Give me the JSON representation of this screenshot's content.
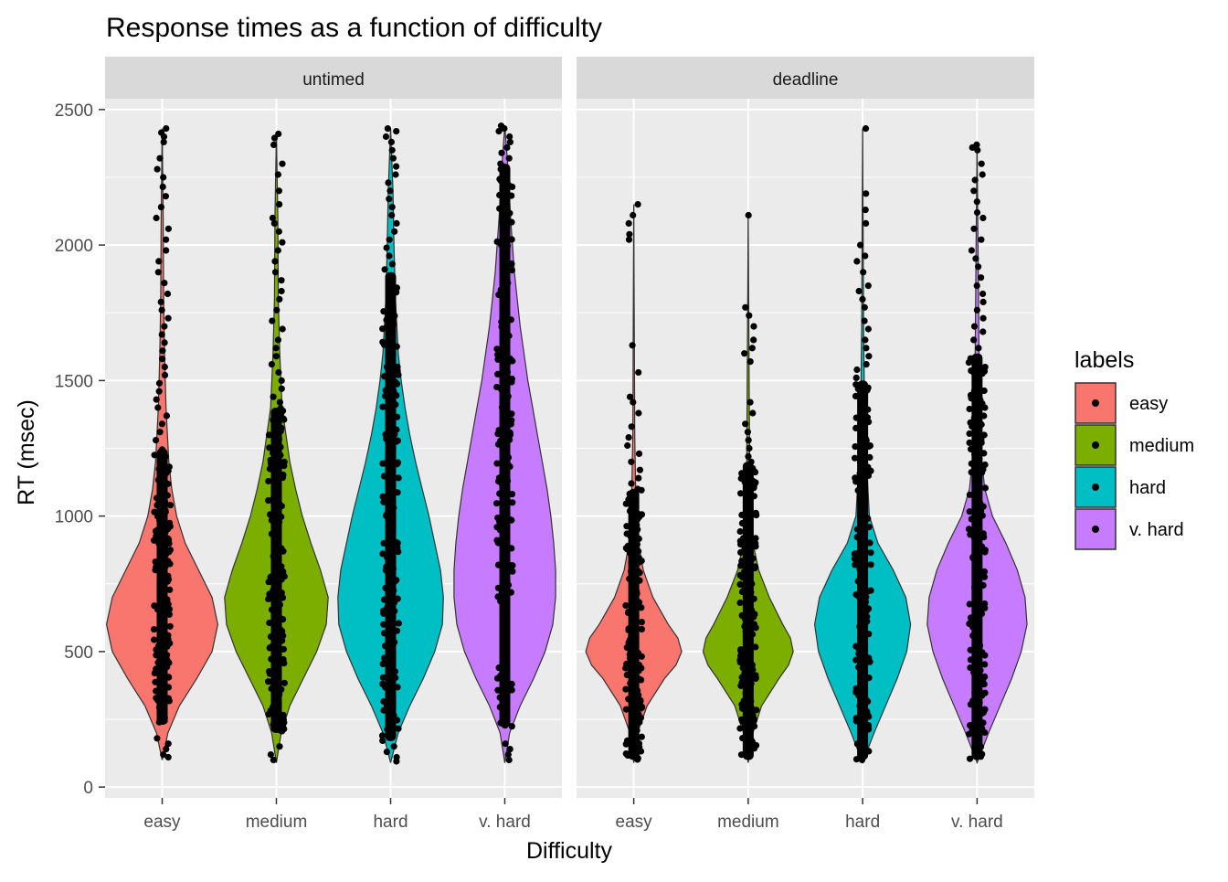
{
  "chart_data": {
    "type": "violin",
    "title": "Response times as a function of difficulty",
    "xlabel": "Difficulty",
    "ylabel": "RT (msec)",
    "ylim": [
      -40,
      2540
    ],
    "yticks": [
      0,
      500,
      1000,
      1500,
      2000,
      2500
    ],
    "grid": true,
    "categories": [
      "easy",
      "medium",
      "hard",
      "v. hard"
    ],
    "legend": {
      "title": "labels",
      "position": "right",
      "entries": [
        {
          "label": "easy",
          "color": "#F8766D"
        },
        {
          "label": "medium",
          "color": "#7CAE00"
        },
        {
          "label": "hard",
          "color": "#00BFC4"
        },
        {
          "label": "v. hard",
          "color": "#C77CFF"
        }
      ]
    },
    "panels": [
      {
        "label": "untimed",
        "series": [
          {
            "category": "easy",
            "color": "#F8766D",
            "min": 100,
            "max": 2430,
            "dense_range": [
              230,
              1250
            ],
            "profile": [
              [
                100,
                0
              ],
              [
                200,
                6
              ],
              [
                300,
                18
              ],
              [
                400,
                36
              ],
              [
                500,
                52
              ],
              [
                600,
                58
              ],
              [
                700,
                52
              ],
              [
                800,
                38
              ],
              [
                900,
                24
              ],
              [
                1000,
                15
              ],
              [
                1100,
                10
              ],
              [
                1200,
                7
              ],
              [
                1400,
                4
              ],
              [
                1600,
                2.5
              ],
              [
                1800,
                1.5
              ],
              [
                2100,
                1
              ],
              [
                2430,
                0
              ]
            ],
            "outliers": [
              2430,
              2415,
              2400,
              2380,
              2320,
              2280,
              2250,
              2215,
              2180,
              2140,
              2100,
              2060,
              2020,
              1980,
              1940,
              1900,
              1860,
              1820,
              1790,
              1760,
              1730,
              1700,
              1670,
              1640,
              1610,
              1580,
              1550,
              1520,
              1490,
              1460,
              1430,
              1400,
              1370,
              1340,
              1310,
              1280,
              180,
              160,
              140,
              120,
              110
            ]
          },
          {
            "category": "medium",
            "color": "#7CAE00",
            "min": 90,
            "max": 2410,
            "dense_range": [
              200,
              1400
            ],
            "profile": [
              [
                90,
                0
              ],
              [
                200,
                5
              ],
              [
                300,
                14
              ],
              [
                400,
                28
              ],
              [
                500,
                42
              ],
              [
                600,
                52
              ],
              [
                700,
                54
              ],
              [
                800,
                46
              ],
              [
                900,
                36
              ],
              [
                1000,
                27
              ],
              [
                1100,
                20
              ],
              [
                1200,
                14
              ],
              [
                1300,
                10
              ],
              [
                1400,
                6
              ],
              [
                1600,
                3.5
              ],
              [
                1800,
                2
              ],
              [
                2100,
                1.5
              ],
              [
                2410,
                0
              ]
            ],
            "outliers": [
              2410,
              2395,
              2370,
              2300,
              2260,
              2200,
              2150,
              2100,
              2080,
              2050,
              2010,
              1980,
              1940,
              1900,
              1870,
              1830,
              1800,
              1760,
              1720,
              1690,
              1650,
              1620,
              1590,
              1560,
              1530,
              1500,
              1470,
              1440,
              1420,
              150,
              120,
              100
            ]
          },
          {
            "category": "hard",
            "color": "#00BFC4",
            "min": 90,
            "max": 2430,
            "dense_range": [
              170,
              1900
            ],
            "profile": [
              [
                90,
                0
              ],
              [
                200,
                8
              ],
              [
                300,
                20
              ],
              [
                400,
                34
              ],
              [
                500,
                46
              ],
              [
                600,
                54
              ],
              [
                700,
                55
              ],
              [
                800,
                52
              ],
              [
                900,
                46
              ],
              [
                1000,
                40
              ],
              [
                1100,
                33
              ],
              [
                1200,
                26
              ],
              [
                1300,
                20
              ],
              [
                1400,
                15
              ],
              [
                1500,
                11
              ],
              [
                1600,
                8
              ],
              [
                1800,
                5
              ],
              [
                2000,
                3.5
              ],
              [
                2200,
                2.5
              ],
              [
                2430,
                0
              ]
            ],
            "outliers": [
              2430,
              2420,
              2400,
              2380,
              2350,
              2320,
              2290,
              2260,
              2230,
              2200,
              2170,
              2140,
              2110,
              2080,
              2050,
              2020,
              1990,
              1960,
              1930,
              1910,
              150,
              130,
              110,
              95
            ]
          },
          {
            "category": "v. hard",
            "color": "#C77CFF",
            "min": 90,
            "max": 2440,
            "dense_range": [
              220,
              2300
            ],
            "profile": [
              [
                90,
                0
              ],
              [
                200,
                5
              ],
              [
                300,
                16
              ],
              [
                400,
                30
              ],
              [
                500,
                42
              ],
              [
                600,
                50
              ],
              [
                700,
                53
              ],
              [
                800,
                53
              ],
              [
                900,
                51
              ],
              [
                1000,
                48
              ],
              [
                1100,
                44
              ],
              [
                1200,
                39
              ],
              [
                1300,
                34
              ],
              [
                1400,
                29
              ],
              [
                1500,
                24
              ],
              [
                1600,
                20
              ],
              [
                1700,
                16
              ],
              [
                1800,
                13
              ],
              [
                1900,
                10
              ],
              [
                2000,
                8
              ],
              [
                2100,
                6
              ],
              [
                2200,
                4.5
              ],
              [
                2300,
                3
              ],
              [
                2440,
                0
              ]
            ],
            "outliers": [
              2440,
              2430,
              2420,
              2400,
              2380,
              2360,
              2340,
              2320,
              2300,
              2280,
              160,
              140,
              120,
              100
            ]
          }
        ]
      },
      {
        "label": "deadline",
        "series": [
          {
            "category": "easy",
            "color": "#F8766D",
            "min": 90,
            "max": 2150,
            "dense_range": [
              100,
              1100
            ],
            "profile": [
              [
                90,
                0
              ],
              [
                200,
                4
              ],
              [
                300,
                14
              ],
              [
                400,
                32
              ],
              [
                450,
                44
              ],
              [
                500,
                50
              ],
              [
                550,
                46
              ],
              [
                600,
                36
              ],
              [
                700,
                20
              ],
              [
                800,
                10
              ],
              [
                900,
                5
              ],
              [
                1000,
                3
              ],
              [
                1100,
                2
              ],
              [
                1300,
                1
              ],
              [
                2150,
                0
              ]
            ],
            "outliers": [
              2150,
              2110,
              2080,
              2040,
              2020,
              1630,
              1530,
              1440,
              1420,
              1380,
              1330,
              1290,
              1260,
              1230,
              1200,
              1170,
              1140,
              1120,
              1100
            ]
          },
          {
            "category": "medium",
            "color": "#7CAE00",
            "min": 90,
            "max": 2110,
            "dense_range": [
              100,
              1200
            ],
            "profile": [
              [
                90,
                0
              ],
              [
                200,
                5
              ],
              [
                300,
                14
              ],
              [
                400,
                32
              ],
              [
                450,
                42
              ],
              [
                500,
                47
              ],
              [
                550,
                44
              ],
              [
                600,
                36
              ],
              [
                700,
                22
              ],
              [
                800,
                11
              ],
              [
                900,
                5
              ],
              [
                1000,
                3
              ],
              [
                1200,
                1.5
              ],
              [
                1500,
                1
              ],
              [
                2110,
                0
              ]
            ],
            "outliers": [
              2110,
              1770,
              1740,
              1700,
              1650,
              1620,
              1600,
              1570,
              1420,
              1380,
              1340,
              1310,
              1280,
              1250,
              1220,
              1200
            ]
          },
          {
            "category": "hard",
            "color": "#00BFC4",
            "min": 90,
            "max": 2430,
            "dense_range": [
              100,
              1500
            ],
            "profile": [
              [
                90,
                0
              ],
              [
                200,
                12
              ],
              [
                300,
                24
              ],
              [
                400,
                36
              ],
              [
                500,
                46
              ],
              [
                600,
                50
              ],
              [
                700,
                45
              ],
              [
                800,
                32
              ],
              [
                900,
                16
              ],
              [
                1000,
                7
              ],
              [
                1200,
                4
              ],
              [
                1400,
                2
              ],
              [
                1700,
                1
              ],
              [
                2430,
                0
              ]
            ],
            "outliers": [
              2430,
              2190,
              2130,
              2080,
              2000,
              1960,
              1940,
              1900,
              1850,
              1830,
              1800,
              1770,
              1720,
              1690,
              1650,
              1620,
              1590,
              1560,
              1540,
              1510
            ]
          },
          {
            "category": "v. hard",
            "color": "#C77CFF",
            "min": 90,
            "max": 2370,
            "dense_range": [
              100,
              1600
            ],
            "profile": [
              [
                90,
                0
              ],
              [
                200,
                12
              ],
              [
                300,
                24
              ],
              [
                400,
                36
              ],
              [
                500,
                46
              ],
              [
                600,
                52
              ],
              [
                700,
                50
              ],
              [
                800,
                42
              ],
              [
                900,
                30
              ],
              [
                1000,
                16
              ],
              [
                1100,
                8
              ],
              [
                1200,
                5
              ],
              [
                1400,
                3
              ],
              [
                1600,
                2
              ],
              [
                1800,
                1.5
              ],
              [
                2000,
                1
              ],
              [
                2370,
                0
              ]
            ],
            "outliers": [
              2370,
              2360,
              2350,
              2300,
              2260,
              2240,
              2200,
              2160,
              2120,
              2100,
              2060,
              2020,
              1980,
              1950,
              1920,
              1880,
              1850,
              1820,
              1790,
              1760,
              1730,
              1700,
              1680,
              1650,
              1620
            ]
          }
        ]
      }
    ]
  }
}
